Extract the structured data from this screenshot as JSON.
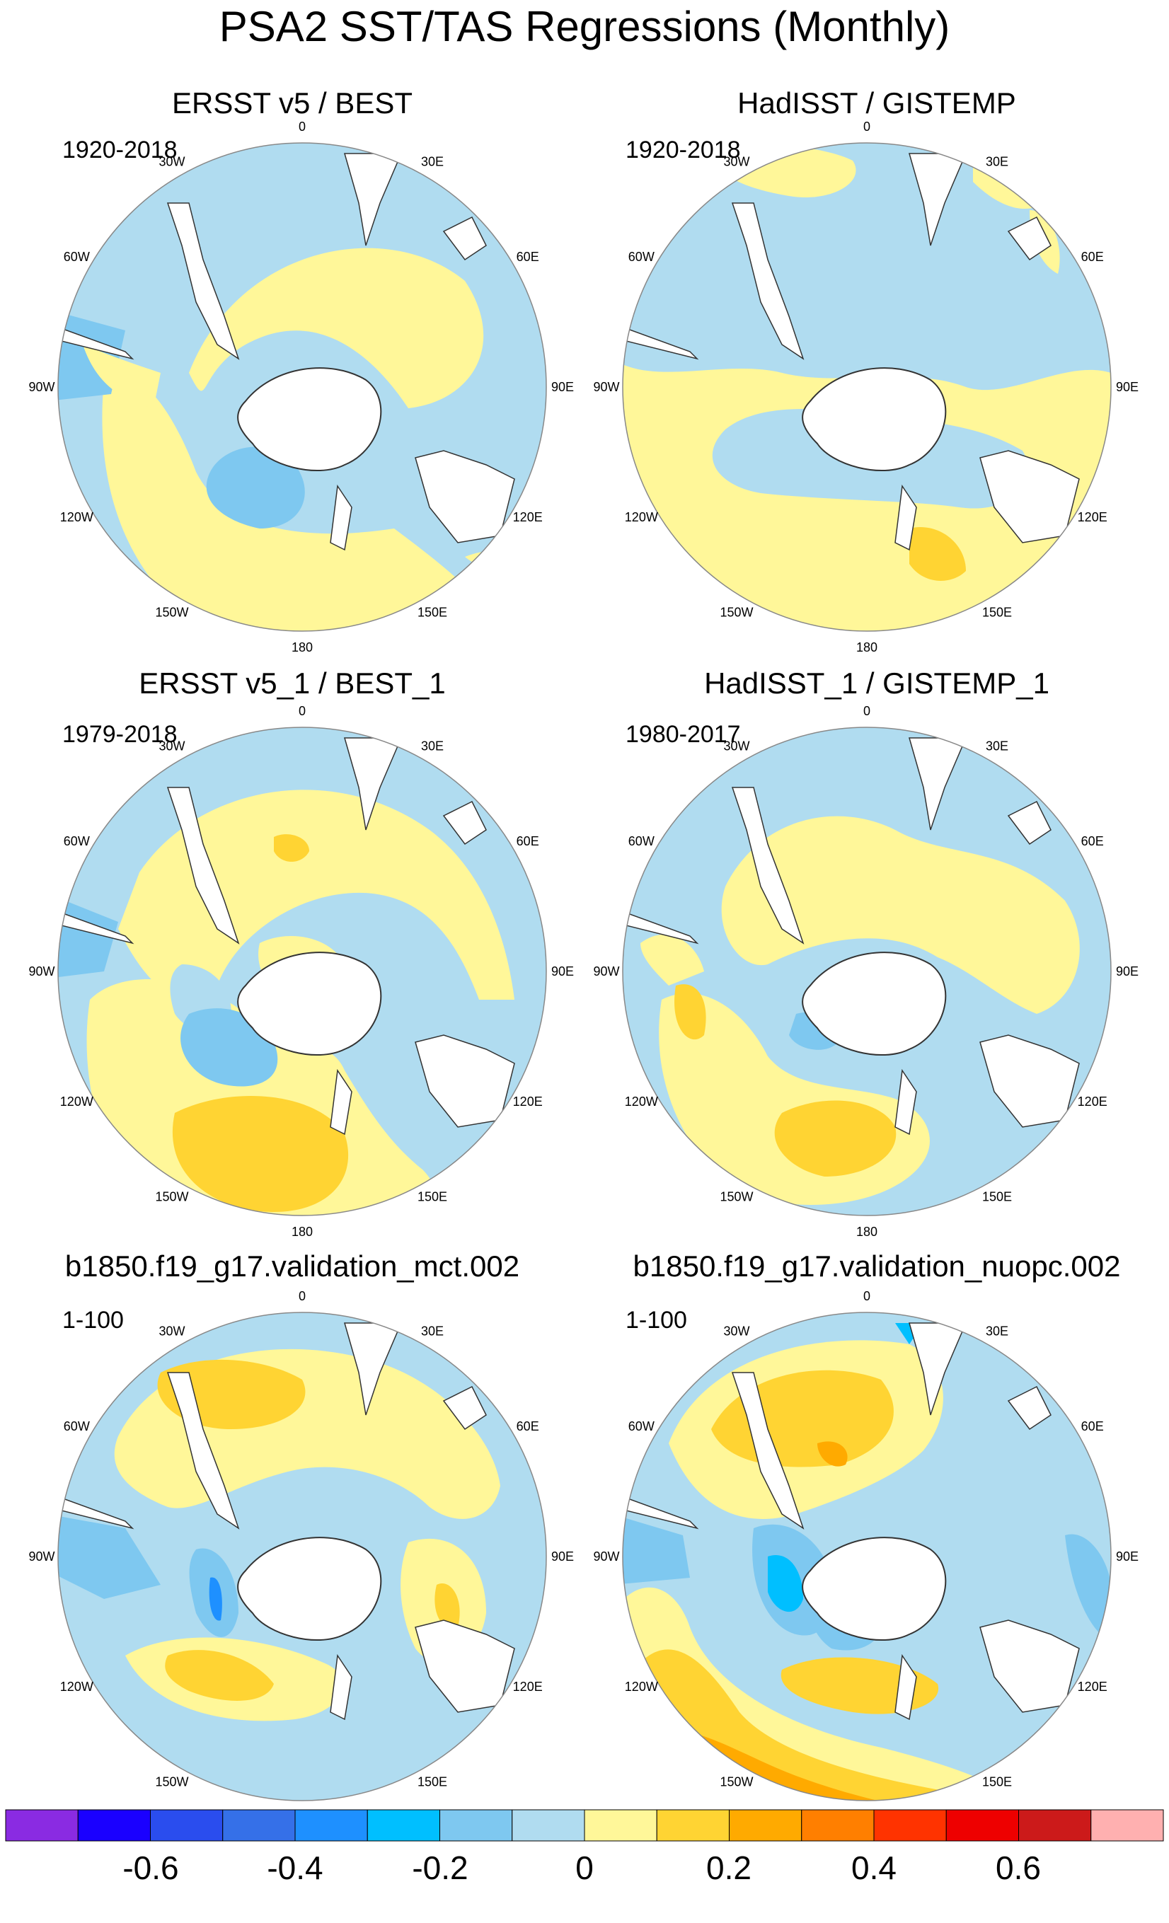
{
  "title": "PSA2 SST/TAS Regressions (Monthly)",
  "panels": [
    {
      "title": "ERSST v5 / BEST",
      "period": "1920-2018"
    },
    {
      "title": "HadISST / GISTEMP",
      "period": "1920-2018"
    },
    {
      "title": "ERSST v5_1 / BEST_1",
      "period": "1979-2018"
    },
    {
      "title": "HadISST_1 / GISTEMP_1",
      "period": "1980-2017"
    },
    {
      "title": "b1850.f19_g17.validation_mct.002",
      "period": "1-100"
    },
    {
      "title": "b1850.f19_g17.validation_nuopc.002",
      "period": "1-100"
    }
  ],
  "longitude_labels": [
    "0",
    "30E",
    "60E",
    "90E",
    "120E",
    "150E",
    "180",
    "150W",
    "120W",
    "90W",
    "60W",
    "30W"
  ],
  "projection": "south polar stereographic",
  "colorbar": {
    "colors": [
      "#8a2be2",
      "#1a00ff",
      "#2a4dee",
      "#3570e8",
      "#1e90ff",
      "#00bfff",
      "#7ec8f0",
      "#b0dcf0",
      "#fff799",
      "#ffd433",
      "#ffaa00",
      "#ff7f00",
      "#ff3300",
      "#ee0000",
      "#cc1a1a",
      "#ffb0b0"
    ],
    "labels": [
      "-0.6",
      "-0.4",
      "-0.2",
      "0",
      "0.2",
      "0.4",
      "0.6"
    ]
  },
  "colors": {
    "land": "#ffffff",
    "coastline": "#333333",
    "ocean_default": "#b0dcf0"
  }
}
